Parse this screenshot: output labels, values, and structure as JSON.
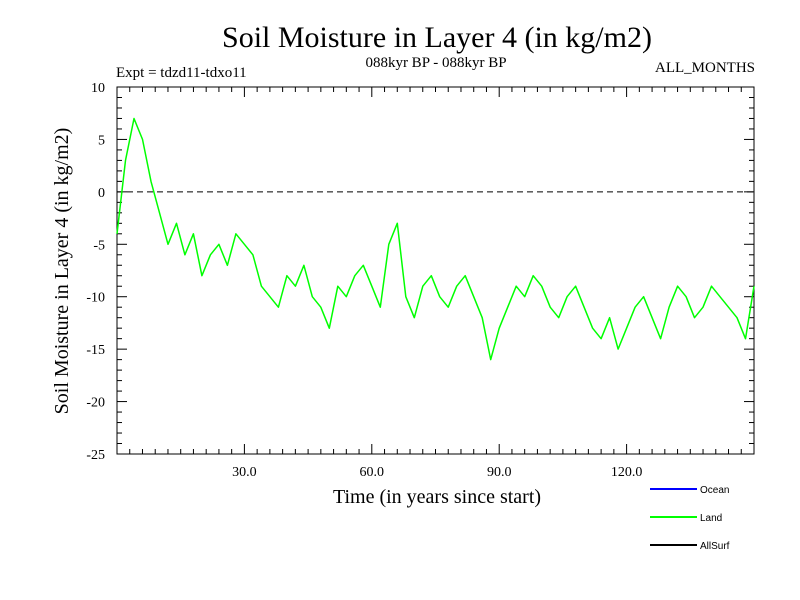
{
  "chart_data": {
    "type": "line",
    "title": "Soil Moisture in Layer 4 (in kg/m2)",
    "subtitle_left": "Expt = tdzd11-tdxo11",
    "subtitle_center": "088kyr BP - 088kyr BP",
    "subtitle_right": "ALL_MONTHS",
    "xlabel": "Time (in years since start)",
    "ylabel": "Soil Moisture in Layer 4 (in kg/m2)",
    "xlim": [
      0,
      150
    ],
    "ylim": [
      -25,
      10
    ],
    "x_ticks": [
      30,
      60,
      90,
      120
    ],
    "x_tick_labels": [
      "30.0",
      "60.0",
      "90.0",
      "120.0"
    ],
    "y_ticks": [
      10,
      5,
      0,
      -5,
      -10,
      -15,
      -20,
      -25
    ],
    "y_tick_labels": [
      "10",
      "5",
      "0",
      "-5",
      "-10",
      "-15",
      "-20",
      "-25"
    ],
    "reference_line": 0,
    "legend": [
      {
        "name": "Ocean",
        "color": "#0000ff"
      },
      {
        "name": "Land",
        "color": "#00ff00"
      },
      {
        "name": "AllSurf",
        "color": "#000000"
      }
    ],
    "series": [
      {
        "name": "Land",
        "color": "#00ff00",
        "x": [
          0,
          2,
          4,
          6,
          8,
          10,
          12,
          14,
          16,
          18,
          20,
          22,
          24,
          26,
          28,
          30,
          32,
          34,
          36,
          38,
          40,
          42,
          44,
          46,
          48,
          50,
          52,
          54,
          56,
          58,
          60,
          62,
          64,
          66,
          68,
          70,
          72,
          74,
          76,
          78,
          80,
          82,
          84,
          86,
          88,
          90,
          92,
          94,
          96,
          98,
          100,
          102,
          104,
          106,
          108,
          110,
          112,
          114,
          116,
          118,
          120,
          122,
          124,
          126,
          128,
          130,
          132,
          134,
          136,
          138,
          140,
          142,
          144,
          146,
          148,
          150
        ],
        "values": [
          -4,
          3,
          7,
          5,
          1,
          -2,
          -5,
          -3,
          -6,
          -4,
          -8,
          -6,
          -5,
          -7,
          -4,
          -5,
          -6,
          -9,
          -10,
          -11,
          -8,
          -9,
          -7,
          -10,
          -11,
          -13,
          -9,
          -10,
          -8,
          -7,
          -9,
          -11,
          -5,
          -3,
          -10,
          -12,
          -9,
          -8,
          -10,
          -11,
          -9,
          -8,
          -10,
          -12,
          -16,
          -13,
          -11,
          -9,
          -10,
          -8,
          -9,
          -11,
          -12,
          -10,
          -9,
          -11,
          -13,
          -14,
          -12,
          -15,
          -13,
          -11,
          -10,
          -12,
          -14,
          -11,
          -9,
          -10,
          -12,
          -11,
          -9,
          -10,
          -11,
          -12,
          -14,
          -9
        ]
      }
    ]
  }
}
